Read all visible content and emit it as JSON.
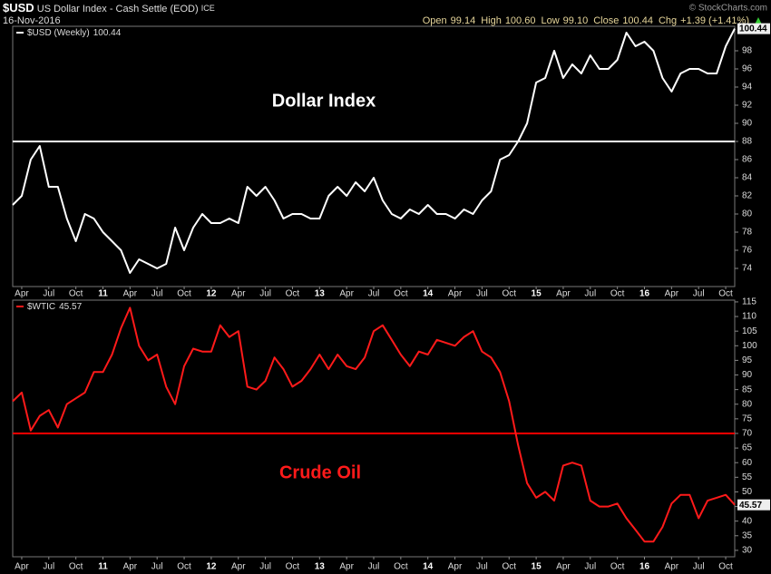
{
  "header": {
    "symbol": "$USD",
    "name": "US Dollar Index - Cash Settle (EOD)",
    "exchange": "ICE",
    "date": "16-Nov-2016",
    "copyright": "© StockCharts.com",
    "quote": [
      {
        "label": "Open",
        "value": "99.14"
      },
      {
        "label": "High",
        "value": "100.60"
      },
      {
        "label": "Low",
        "value": "99.10"
      },
      {
        "label": "Close",
        "value": "100.44"
      },
      {
        "label": "Chg",
        "value": "+1.39 (+1.41%)"
      }
    ]
  },
  "chart_data": [
    {
      "type": "line",
      "annotation": "Dollar Index",
      "reference_line": 88,
      "reference_color": "#ffffff",
      "xlim": [
        "2010-03",
        "2016-11"
      ],
      "ylim": [
        72,
        100.7
      ],
      "yticks": [
        74,
        76,
        78,
        80,
        82,
        84,
        86,
        88,
        90,
        92,
        94,
        96,
        98
      ],
      "xticks": [
        {
          "value": "2010-04",
          "label": "Apr"
        },
        {
          "value": "2010-07",
          "label": "Jul"
        },
        {
          "value": "2010-10",
          "label": "Oct"
        },
        {
          "value": "2011-01",
          "label": "11"
        },
        {
          "value": "2011-04",
          "label": "Apr"
        },
        {
          "value": "2011-07",
          "label": "Jul"
        },
        {
          "value": "2011-10",
          "label": "Oct"
        },
        {
          "value": "2012-01",
          "label": "12"
        },
        {
          "value": "2012-04",
          "label": "Apr"
        },
        {
          "value": "2012-07",
          "label": "Jul"
        },
        {
          "value": "2012-10",
          "label": "Oct"
        },
        {
          "value": "2013-01",
          "label": "13"
        },
        {
          "value": "2013-04",
          "label": "Apr"
        },
        {
          "value": "2013-07",
          "label": "Jul"
        },
        {
          "value": "2013-10",
          "label": "Oct"
        },
        {
          "value": "2014-01",
          "label": "14"
        },
        {
          "value": "2014-04",
          "label": "Apr"
        },
        {
          "value": "2014-07",
          "label": "Jul"
        },
        {
          "value": "2014-10",
          "label": "Oct"
        },
        {
          "value": "2015-01",
          "label": "15"
        },
        {
          "value": "2015-04",
          "label": "Apr"
        },
        {
          "value": "2015-07",
          "label": "Jul"
        },
        {
          "value": "2015-10",
          "label": "Oct"
        },
        {
          "value": "2016-01",
          "label": "16"
        },
        {
          "value": "2016-04",
          "label": "Apr"
        },
        {
          "value": "2016-07",
          "label": "Jul"
        },
        {
          "value": "2016-10",
          "label": "Oct"
        }
      ],
      "x": [
        "2010-03",
        "2010-04",
        "2010-05",
        "2010-06",
        "2010-07",
        "2010-08",
        "2010-09",
        "2010-10",
        "2010-11",
        "2010-12",
        "2011-01",
        "2011-02",
        "2011-03",
        "2011-04",
        "2011-05",
        "2011-06",
        "2011-07",
        "2011-08",
        "2011-09",
        "2011-10",
        "2011-11",
        "2011-12",
        "2012-01",
        "2012-02",
        "2012-03",
        "2012-04",
        "2012-05",
        "2012-06",
        "2012-07",
        "2012-08",
        "2012-09",
        "2012-10",
        "2012-11",
        "2012-12",
        "2013-01",
        "2013-02",
        "2013-03",
        "2013-04",
        "2013-05",
        "2013-06",
        "2013-07",
        "2013-08",
        "2013-09",
        "2013-10",
        "2013-11",
        "2013-12",
        "2014-01",
        "2014-02",
        "2014-03",
        "2014-04",
        "2014-05",
        "2014-06",
        "2014-07",
        "2014-08",
        "2014-09",
        "2014-10",
        "2014-11",
        "2014-12",
        "2015-01",
        "2015-02",
        "2015-03",
        "2015-04",
        "2015-05",
        "2015-06",
        "2015-07",
        "2015-08",
        "2015-09",
        "2015-10",
        "2015-11",
        "2015-12",
        "2016-01",
        "2016-02",
        "2016-03",
        "2016-04",
        "2016-05",
        "2016-06",
        "2016-07",
        "2016-08",
        "2016-09",
        "2016-10",
        "2016-11"
      ],
      "series": [
        {
          "name": "$USD (Weekly)",
          "color": "#ffffff",
          "values": [
            81,
            82,
            86,
            87.5,
            83,
            83,
            79.5,
            77,
            80,
            79.5,
            78,
            77,
            76,
            73.5,
            75,
            74.5,
            74,
            74.5,
            78.5,
            76,
            78.5,
            80,
            79,
            79,
            79.5,
            79,
            83,
            82,
            83,
            81.5,
            79.5,
            80,
            80,
            79.5,
            79.5,
            82,
            83,
            82,
            83.5,
            82.5,
            84,
            81.5,
            80,
            79.5,
            80.5,
            80,
            81,
            80,
            80,
            79.5,
            80.5,
            80,
            81.5,
            82.5,
            86,
            86.5,
            88,
            90,
            94.5,
            95,
            98,
            95,
            96.5,
            95.5,
            97.5,
            96,
            96,
            97,
            100,
            98.5,
            99,
            98,
            95,
            93.5,
            95.5,
            96,
            96,
            95.5,
            95.5,
            98.5,
            100.44
          ]
        }
      ]
    },
    {
      "type": "line",
      "annotation": "Crude Oil",
      "reference_line": 70,
      "reference_color": "#ff0000",
      "xlim": [
        "2010-03",
        "2016-11"
      ],
      "ylim": [
        27.8,
        115.6
      ],
      "yticks": [
        30,
        35,
        40,
        45,
        50,
        55,
        60,
        65,
        70,
        75,
        80,
        85,
        90,
        95,
        100,
        105,
        110,
        115
      ],
      "xticks": [
        {
          "value": "2010-04",
          "label": "Apr"
        },
        {
          "value": "2010-07",
          "label": "Jul"
        },
        {
          "value": "2010-10",
          "label": "Oct"
        },
        {
          "value": "2011-01",
          "label": "11"
        },
        {
          "value": "2011-04",
          "label": "Apr"
        },
        {
          "value": "2011-07",
          "label": "Jul"
        },
        {
          "value": "2011-10",
          "label": "Oct"
        },
        {
          "value": "2012-01",
          "label": "12"
        },
        {
          "value": "2012-04",
          "label": "Apr"
        },
        {
          "value": "2012-07",
          "label": "Jul"
        },
        {
          "value": "2012-10",
          "label": "Oct"
        },
        {
          "value": "2013-01",
          "label": "13"
        },
        {
          "value": "2013-04",
          "label": "Apr"
        },
        {
          "value": "2013-07",
          "label": "Jul"
        },
        {
          "value": "2013-10",
          "label": "Oct"
        },
        {
          "value": "2014-01",
          "label": "14"
        },
        {
          "value": "2014-04",
          "label": "Apr"
        },
        {
          "value": "2014-07",
          "label": "Jul"
        },
        {
          "value": "2014-10",
          "label": "Oct"
        },
        {
          "value": "2015-01",
          "label": "15"
        },
        {
          "value": "2015-04",
          "label": "Apr"
        },
        {
          "value": "2015-07",
          "label": "Jul"
        },
        {
          "value": "2015-10",
          "label": "Oct"
        },
        {
          "value": "2016-01",
          "label": "16"
        },
        {
          "value": "2016-04",
          "label": "Apr"
        },
        {
          "value": "2016-07",
          "label": "Jul"
        },
        {
          "value": "2016-10",
          "label": "Oct"
        }
      ],
      "x": [
        "2010-03",
        "2010-04",
        "2010-05",
        "2010-06",
        "2010-07",
        "2010-08",
        "2010-09",
        "2010-10",
        "2010-11",
        "2010-12",
        "2011-01",
        "2011-02",
        "2011-03",
        "2011-04",
        "2011-05",
        "2011-06",
        "2011-07",
        "2011-08",
        "2011-09",
        "2011-10",
        "2011-11",
        "2011-12",
        "2012-01",
        "2012-02",
        "2012-03",
        "2012-04",
        "2012-05",
        "2012-06",
        "2012-07",
        "2012-08",
        "2012-09",
        "2012-10",
        "2012-11",
        "2012-12",
        "2013-01",
        "2013-02",
        "2013-03",
        "2013-04",
        "2013-05",
        "2013-06",
        "2013-07",
        "2013-08",
        "2013-09",
        "2013-10",
        "2013-11",
        "2013-12",
        "2014-01",
        "2014-02",
        "2014-03",
        "2014-04",
        "2014-05",
        "2014-06",
        "2014-07",
        "2014-08",
        "2014-09",
        "2014-10",
        "2014-11",
        "2014-12",
        "2015-01",
        "2015-02",
        "2015-03",
        "2015-04",
        "2015-05",
        "2015-06",
        "2015-07",
        "2015-08",
        "2015-09",
        "2015-10",
        "2015-11",
        "2015-12",
        "2016-01",
        "2016-02",
        "2016-03",
        "2016-04",
        "2016-05",
        "2016-06",
        "2016-07",
        "2016-08",
        "2016-09",
        "2016-10",
        "2016-11"
      ],
      "series": [
        {
          "name": "$WTIC",
          "color": "#ff1a1a",
          "values": [
            81,
            84,
            71,
            76,
            78,
            72,
            80,
            82,
            84,
            91,
            91,
            97,
            106,
            113,
            100,
            95,
            97,
            86,
            80,
            93,
            99,
            98,
            98,
            107,
            103,
            105,
            86,
            85,
            88,
            96,
            92,
            86,
            88,
            92,
            97,
            92,
            97,
            93,
            92,
            96,
            105,
            107,
            102,
            97,
            93,
            98,
            97,
            102,
            101,
            100,
            103,
            105,
            98,
            96,
            91,
            81,
            66,
            53,
            48,
            50,
            47,
            59,
            60,
            59,
            47,
            45,
            45,
            46,
            41,
            37,
            33,
            33,
            38,
            46,
            49,
            49,
            41,
            47,
            48,
            49,
            45.57
          ]
        }
      ]
    }
  ]
}
